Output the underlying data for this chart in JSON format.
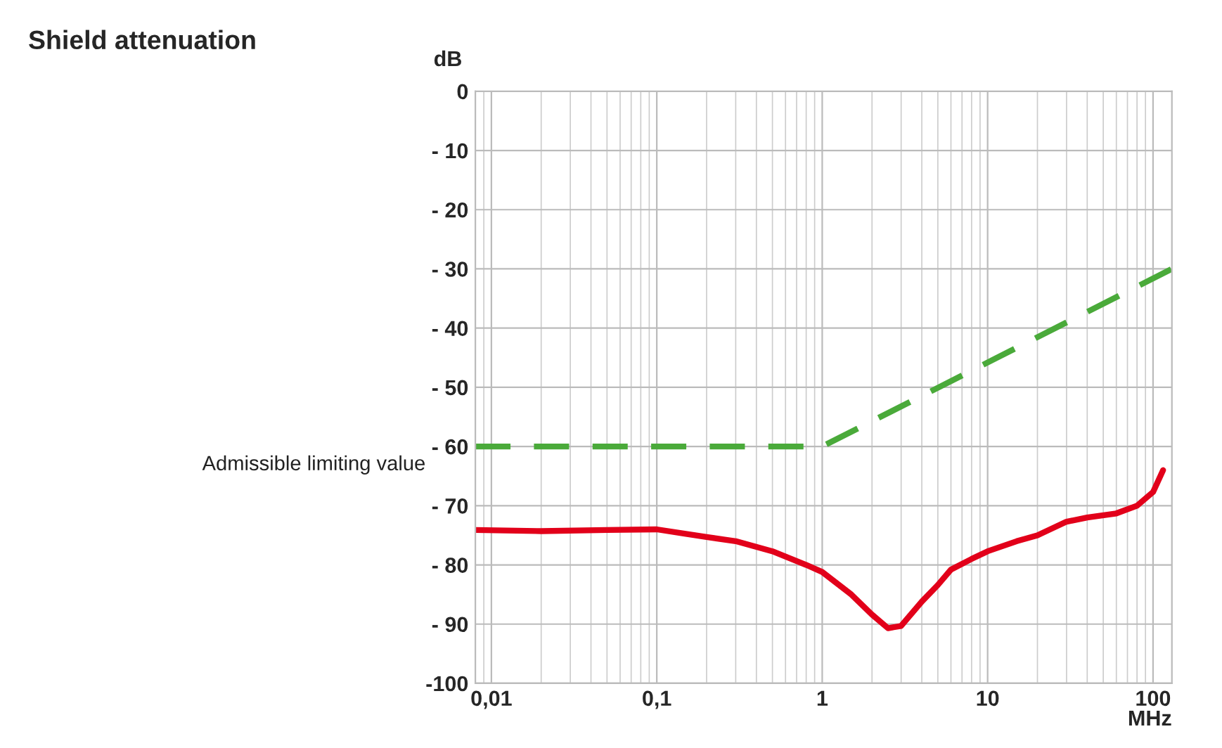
{
  "chart_data": {
    "type": "line",
    "title": "Shield attenuation",
    "xlabel": "MHz",
    "ylabel": "dB",
    "log": "x",
    "grid": true,
    "line_style": "solid",
    "marker": "none",
    "xlim": [
      0.008,
      130
    ],
    "xticks": [
      {
        "value": 0.01,
        "label": "0,01"
      },
      {
        "value": 0.1,
        "label": "0,1"
      },
      1,
      10,
      100
    ],
    "ylim": [
      -100,
      0
    ],
    "yticks": [
      0,
      {
        "value": -10,
        "label": "- 10"
      },
      {
        "value": -20,
        "label": "- 20"
      },
      {
        "value": -30,
        "label": "- 30"
      },
      {
        "value": -40,
        "label": "- 40"
      },
      {
        "value": -50,
        "label": "- 50"
      },
      {
        "value": -60,
        "label": "- 60"
      },
      {
        "value": -70,
        "label": "- 70"
      },
      {
        "value": -80,
        "label": "- 80"
      },
      {
        "value": -90,
        "label": "- 90"
      },
      {
        "value": -100,
        "label": "-100"
      }
    ],
    "series": [
      {
        "name": "Admissible limiting value",
        "color": "#4aaa3a",
        "line_style": "dashed",
        "x": [
          0.008,
          1,
          130
        ],
        "values": [
          -60,
          -60,
          -30
        ]
      },
      {
        "color": "#e2001a",
        "x": [
          0.008,
          0.02,
          0.05,
          0.1,
          0.2,
          0.3,
          0.5,
          0.8,
          1,
          1.5,
          2,
          2.5,
          3,
          4,
          5,
          6,
          8,
          10,
          15,
          20,
          30,
          40,
          60,
          80,
          100,
          115
        ],
        "values": [
          -74.1,
          -74.3,
          -74.1,
          -74,
          -75.3,
          -76,
          -77.7,
          -80,
          -81.2,
          -85,
          -88.4,
          -90.7,
          -90.3,
          -86.2,
          -83.4,
          -80.8,
          -79,
          -77.7,
          -76,
          -75,
          -72.7,
          -72,
          -71.3,
          -70,
          -67.7,
          -64
        ]
      }
    ]
  }
}
